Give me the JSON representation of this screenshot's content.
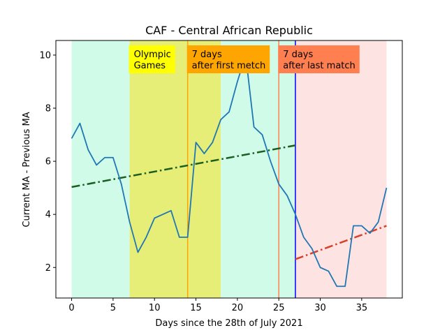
{
  "chart_data": {
    "type": "line",
    "title": "CAF - Central African Republic",
    "xlabel": "Days since the 28th of July 2021",
    "ylabel": "Current MA - Previous MA",
    "xlim": [
      -1.9,
      39.9
    ],
    "ylim": [
      0.85,
      10.55
    ],
    "xticks": [
      0,
      5,
      10,
      15,
      20,
      25,
      30,
      35
    ],
    "yticks": [
      2,
      4,
      6,
      8,
      10
    ],
    "grid": false,
    "series": [
      {
        "values_x": [
          0,
          1,
          2,
          3,
          4,
          5,
          6,
          7,
          8,
          9,
          10,
          11,
          12,
          13,
          14,
          15,
          16,
          17,
          18,
          19,
          20,
          21,
          22,
          23,
          24,
          25,
          26,
          27,
          28,
          29,
          30,
          31,
          32,
          33,
          34,
          35,
          36,
          37,
          38
        ],
        "values_y": [
          6.86,
          7.43,
          6.43,
          5.86,
          6.14,
          6.14,
          5.14,
          3.71,
          2.57,
          3.14,
          3.86,
          4.0,
          4.14,
          3.14,
          3.14,
          6.71,
          6.29,
          6.71,
          7.57,
          7.86,
          9.0,
          10.0,
          7.29,
          7.0,
          6.0,
          5.14,
          4.71,
          4.0,
          3.14,
          2.71,
          2.0,
          1.86,
          1.29,
          1.29,
          3.57,
          3.57,
          3.29,
          3.71,
          5.0
        ],
        "color": "#1f77b4"
      }
    ],
    "trends": [
      {
        "x": [
          0,
          27
        ],
        "y": [
          5.03,
          6.6
        ],
        "color": "#1a5e20",
        "style": "dash-dot"
      },
      {
        "x": [
          27,
          38
        ],
        "y": [
          2.31,
          3.57
        ],
        "color": "#d9402a",
        "style": "dash-dot"
      }
    ],
    "regions": [
      {
        "x0": 0,
        "x1": 7,
        "color": "#d0fbe9"
      },
      {
        "x0": 7,
        "x1": 18,
        "color": "#e6ee78"
      },
      {
        "x0": 18,
        "x1": 27,
        "color": "#d0fbe9"
      },
      {
        "x0": 27,
        "x1": 38,
        "color": "#fde4e3"
      }
    ],
    "vlines": [
      {
        "x": 14,
        "color": "#ffa500"
      },
      {
        "x": 25,
        "color": "#ff7f50"
      },
      {
        "x": 27,
        "color": "#0000ff"
      }
    ],
    "annotations": [
      {
        "x": 7,
        "lines": [
          "Olympic",
          "Games"
        ],
        "bg": "#ffff00"
      },
      {
        "x": 14,
        "lines": [
          "7 days",
          "after first metch"
        ],
        "bg": "#ffa500"
      },
      {
        "x": 25,
        "lines": [
          "7 days",
          "after last match"
        ],
        "bg": "#ff7f50"
      }
    ]
  }
}
